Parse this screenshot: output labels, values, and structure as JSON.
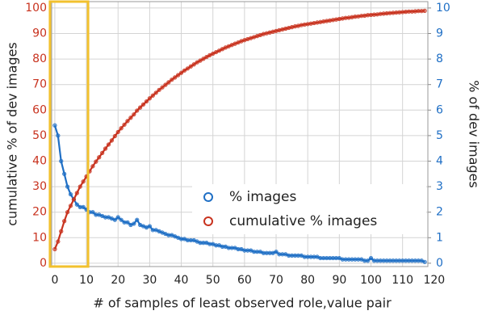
{
  "chart_data": {
    "type": "scatter",
    "xlabel": "# of samples of least observed role,value pair",
    "ylabel": "cumulative % of dev images",
    "y2label": "% of dev images",
    "x": [
      0,
      1,
      2,
      3,
      4,
      5,
      6,
      7,
      8,
      9,
      10,
      11,
      12,
      13,
      14,
      15,
      16,
      17,
      18,
      19,
      20,
      21,
      22,
      23,
      24,
      25,
      26,
      27,
      28,
      29,
      30,
      31,
      32,
      33,
      34,
      35,
      36,
      37,
      38,
      39,
      40,
      41,
      42,
      43,
      44,
      45,
      46,
      47,
      48,
      49,
      50,
      51,
      52,
      53,
      54,
      55,
      56,
      57,
      58,
      59,
      60,
      61,
      62,
      63,
      64,
      65,
      66,
      67,
      68,
      69,
      70,
      71,
      72,
      73,
      74,
      75,
      76,
      77,
      78,
      79,
      80,
      81,
      82,
      83,
      84,
      85,
      86,
      87,
      88,
      89,
      90,
      91,
      92,
      93,
      94,
      95,
      96,
      97,
      98,
      99,
      100,
      101,
      102,
      103,
      104,
      105,
      106,
      107,
      108,
      109,
      110,
      111,
      112,
      113,
      114,
      115,
      116,
      117
    ],
    "series": [
      {
        "name": "% images",
        "color": "#1f6fc5",
        "axis": "y2",
        "values": [
          5.4,
          5.0,
          4.0,
          3.5,
          3.0,
          2.7,
          2.5,
          2.3,
          2.2,
          2.2,
          2.1,
          2.0,
          2.0,
          1.9,
          1.9,
          1.85,
          1.8,
          1.8,
          1.75,
          1.7,
          1.8,
          1.7,
          1.6,
          1.6,
          1.5,
          1.55,
          1.7,
          1.5,
          1.45,
          1.4,
          1.45,
          1.3,
          1.3,
          1.25,
          1.2,
          1.15,
          1.1,
          1.1,
          1.05,
          1.0,
          0.95,
          0.95,
          0.9,
          0.9,
          0.9,
          0.85,
          0.8,
          0.8,
          0.8,
          0.75,
          0.75,
          0.7,
          0.7,
          0.65,
          0.65,
          0.6,
          0.6,
          0.6,
          0.55,
          0.55,
          0.5,
          0.5,
          0.5,
          0.45,
          0.45,
          0.45,
          0.4,
          0.4,
          0.4,
          0.4,
          0.45,
          0.35,
          0.35,
          0.35,
          0.3,
          0.3,
          0.3,
          0.3,
          0.3,
          0.25,
          0.25,
          0.25,
          0.25,
          0.25,
          0.2,
          0.2,
          0.2,
          0.2,
          0.2,
          0.2,
          0.2,
          0.15,
          0.15,
          0.15,
          0.15,
          0.15,
          0.15,
          0.15,
          0.1,
          0.1,
          0.2,
          0.1,
          0.1,
          0.1,
          0.1,
          0.1,
          0.1,
          0.1,
          0.1,
          0.1,
          0.1,
          0.1,
          0.1,
          0.1,
          0.1,
          0.1,
          0.1,
          0.05
        ]
      },
      {
        "name": "cumulative % images",
        "color": "#c8321e",
        "values": [
          5.5,
          8.5,
          12.5,
          16.5,
          20,
          22.5,
          25,
          27.5,
          30,
          32,
          34,
          36,
          38,
          39.8,
          41.5,
          43.2,
          44.9,
          46.5,
          48.1,
          49.8,
          51.4,
          52.9,
          54.3,
          55.7,
          57,
          58.3,
          59.8,
          61,
          62.2,
          63.4,
          64.6,
          65.7,
          66.8,
          67.9,
          68.9,
          69.9,
          70.9,
          71.9,
          72.8,
          73.7,
          74.6,
          75.5,
          76.3,
          77.1,
          77.9,
          78.7,
          79.4,
          80.1,
          80.8,
          81.5,
          82.1,
          82.7,
          83.3,
          83.9,
          84.5,
          85,
          85.5,
          86,
          86.5,
          87,
          87.4,
          87.8,
          88.2,
          88.6,
          89,
          89.4,
          89.8,
          90.1,
          90.4,
          90.7,
          91,
          91.3,
          91.6,
          91.9,
          92.2,
          92.5,
          92.8,
          93,
          93.3,
          93.5,
          93.7,
          93.9,
          94.1,
          94.3,
          94.5,
          94.7,
          94.9,
          95.1,
          95.3,
          95.5,
          95.7,
          95.9,
          96.1,
          96.2,
          96.4,
          96.6,
          96.7,
          96.9,
          97,
          97.2,
          97.3,
          97.4,
          97.5,
          97.7,
          97.8,
          97.9,
          98,
          98.1,
          98.2,
          98.3,
          98.4,
          98.5,
          98.6,
          98.6,
          98.7,
          98.8,
          98.8,
          98.9
        ]
      }
    ],
    "xlim": [
      -1,
      118
    ],
    "xticks": [
      0,
      10,
      20,
      30,
      40,
      50,
      60,
      70,
      80,
      90,
      100,
      110,
      120
    ],
    "ylim": [
      -1.3,
      102.5
    ],
    "yticks": [
      0,
      10,
      20,
      30,
      40,
      50,
      60,
      70,
      80,
      90,
      100
    ],
    "y2lim": [
      -0.13,
      10.25
    ],
    "y2ticks": [
      0,
      1,
      2,
      3,
      4,
      5,
      6,
      7,
      8,
      9,
      10
    ],
    "grid": true,
    "legend": "center right",
    "highlight_xlim": [
      0,
      10
    ],
    "highlight_color": "#f2c12e"
  }
}
